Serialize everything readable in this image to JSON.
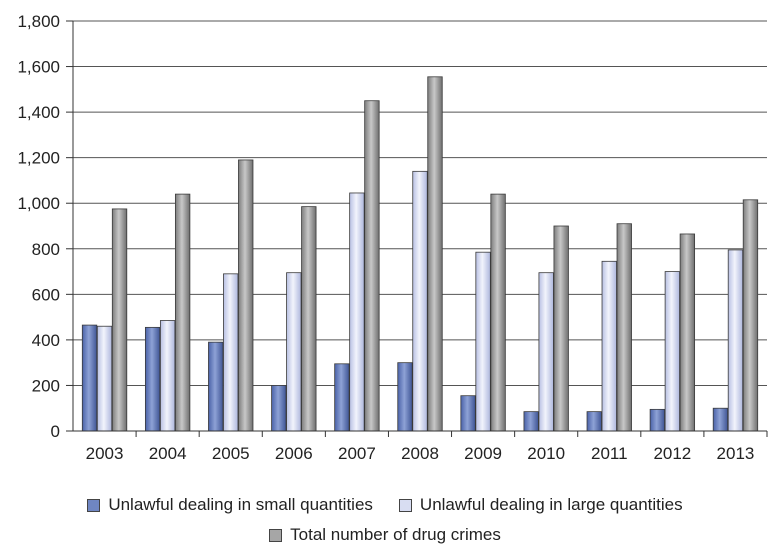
{
  "chart_data": {
    "type": "bar",
    "categories": [
      "2003",
      "2004",
      "2005",
      "2006",
      "2007",
      "2008",
      "2009",
      "2010",
      "2011",
      "2012",
      "2013"
    ],
    "series": [
      {
        "name": "Unlawful dealing in small quantities",
        "color": "#6f86c2",
        "values": [
          465,
          455,
          390,
          200,
          295,
          300,
          155,
          85,
          85,
          95,
          100
        ]
      },
      {
        "name": "Unlawful dealing in large quantities",
        "color": "#d8ddf2",
        "values": [
          460,
          485,
          690,
          695,
          1045,
          1140,
          785,
          695,
          745,
          700,
          795
        ]
      },
      {
        "name": "Total number of drug crimes",
        "color": "#a6a6a6",
        "values": [
          975,
          1040,
          1190,
          985,
          1450,
          1555,
          1040,
          900,
          910,
          865,
          1015
        ]
      }
    ],
    "ylim": [
      0,
      1800
    ],
    "yticks": [
      "0",
      "200",
      "400",
      "600",
      "800",
      "1,000",
      "1,200",
      "1,400",
      "1,600",
      "1,800"
    ],
    "grid": true,
    "legend": "bottom"
  }
}
